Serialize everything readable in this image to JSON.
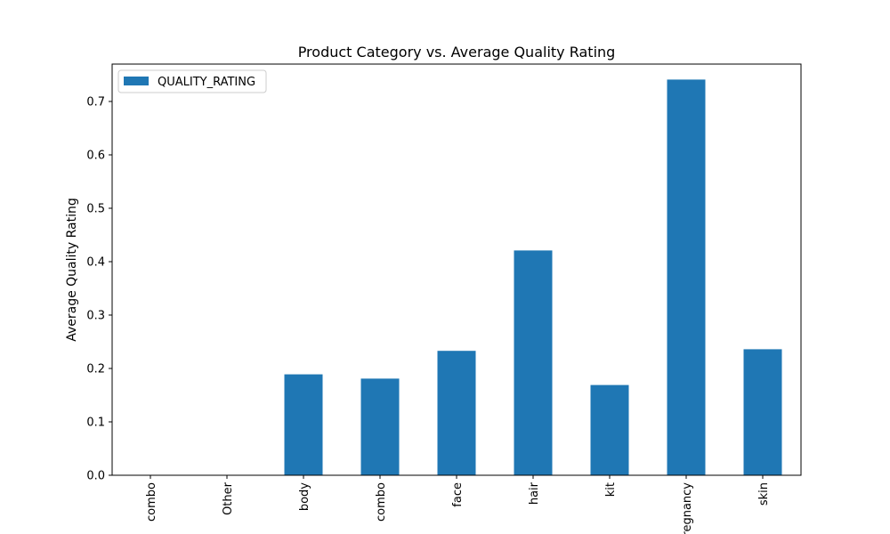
{
  "chart_data": {
    "type": "bar",
    "title": "Product Category vs. Average Quality Rating",
    "xlabel": "",
    "ylabel": "Average Quality Rating",
    "categories": [
      "combo",
      "Other",
      "body",
      "combo",
      "face",
      "hair",
      "kit",
      "pregnancy",
      "skin"
    ],
    "series": [
      {
        "name": "QUALITY_RATING",
        "values": [
          0.0,
          0.0,
          0.189,
          0.181,
          0.233,
          0.421,
          0.169,
          0.741,
          0.236
        ],
        "color": "#1f77b4"
      }
    ],
    "ylim": [
      0,
      0.77
    ],
    "yticks": [
      0.0,
      0.1,
      0.2,
      0.3,
      0.4,
      0.5,
      0.6,
      0.7
    ],
    "ytick_labels": [
      "0.0",
      "0.1",
      "0.2",
      "0.3",
      "0.4",
      "0.5",
      "0.6",
      "0.7"
    ],
    "grid": false,
    "legend": "top-left"
  }
}
